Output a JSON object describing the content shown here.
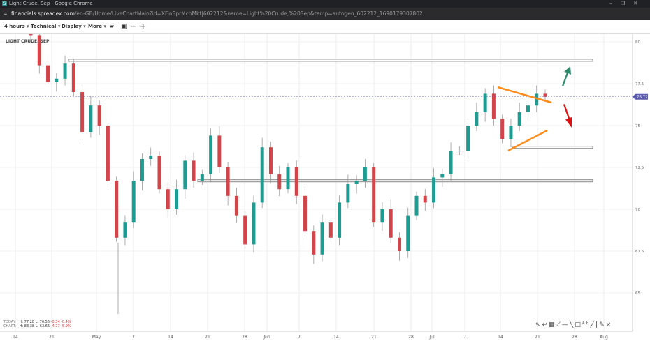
{
  "window": {
    "title": "Light Crude, Sep - Google Chrome",
    "controls": [
      "–",
      "❐",
      "✕"
    ]
  },
  "address": {
    "host": "financials.spreadex.com",
    "path": "/en-GB/Home/LiveChartMain?id=XFinSprMchMkt|602212&name=Light%20Crude,%20Sep&temp=autogen_602212_1690179307802"
  },
  "toolbar": {
    "interval": "4 hours ▾",
    "technical": "Technical ▾",
    "display": "Display ▾",
    "more": "More ▾",
    "icons": [
      "folder-open-icon",
      "save-icon",
      "zoom-out-icon",
      "zoom-in-icon"
    ]
  },
  "instrument_label": "LIGHT CRUDE, SEP",
  "info": {
    "today": {
      "label": "TODAY:",
      "high": "H: 77.28",
      "low": "L: 76.56",
      "change": "-0.34",
      "pct": "-0.4%"
    },
    "chart": {
      "label": "CHART:",
      "high": "H: 83.38",
      "low": "L: 63.66",
      "change": "-4.77",
      "pct": "-5.9%"
    }
  },
  "drawing_tools": [
    "arrow-icon",
    "curve-icon",
    "grid-icon",
    "fan-icon",
    "hline-icon",
    "trendline-icon",
    "rectangle-icon",
    "text-icon",
    "line-icon",
    "pencil-icon",
    "close-icon"
  ],
  "chart_data": {
    "type": "candlestick",
    "y_ticks": [
      "80",
      "77.5",
      "75",
      "72.5",
      "70",
      "67.5",
      "65"
    ],
    "y_tick_values": [
      80,
      77.5,
      75,
      72.5,
      70,
      67.5,
      65
    ],
    "ylim": [
      63.5,
      81.5
    ],
    "x_ticks": [
      "14",
      "21",
      "May",
      "7",
      "14",
      "21",
      "28",
      "Jun",
      "7",
      "14",
      "21",
      "28",
      "Jul",
      "7",
      "14",
      "21",
      "28",
      "Aug"
    ],
    "last_price": "76.72",
    "colors": {
      "up": "#1e9c91",
      "down": "#d2454b",
      "last": "#5b5bb0"
    },
    "closes": [
      80.4,
      78.6,
      77.6,
      77.8,
      78.7,
      77.0,
      74.6,
      76.2,
      75.0,
      71.7,
      68.3,
      69.2,
      71.7,
      73.0,
      73.2,
      71.2,
      70.0,
      71.2,
      72.9,
      71.7,
      72.1,
      74.4,
      72.5,
      70.8,
      69.6,
      67.9,
      70.4,
      73.7,
      72.1,
      71.2,
      72.5,
      70.8,
      68.7,
      67.3,
      69.2,
      68.3,
      70.4,
      71.5,
      71.7,
      72.5,
      69.2,
      70.0,
      68.3,
      67.5,
      69.6,
      70.8,
      70.4,
      71.9,
      72.1,
      73.5,
      73.5,
      75.0,
      75.8,
      76.9,
      75.4,
      74.2,
      75.0,
      75.8,
      76.2,
      76.9,
      76.72
    ]
  },
  "annotations": {
    "support_resistance_zones": [
      78.9,
      73.7,
      71.7
    ]
  }
}
